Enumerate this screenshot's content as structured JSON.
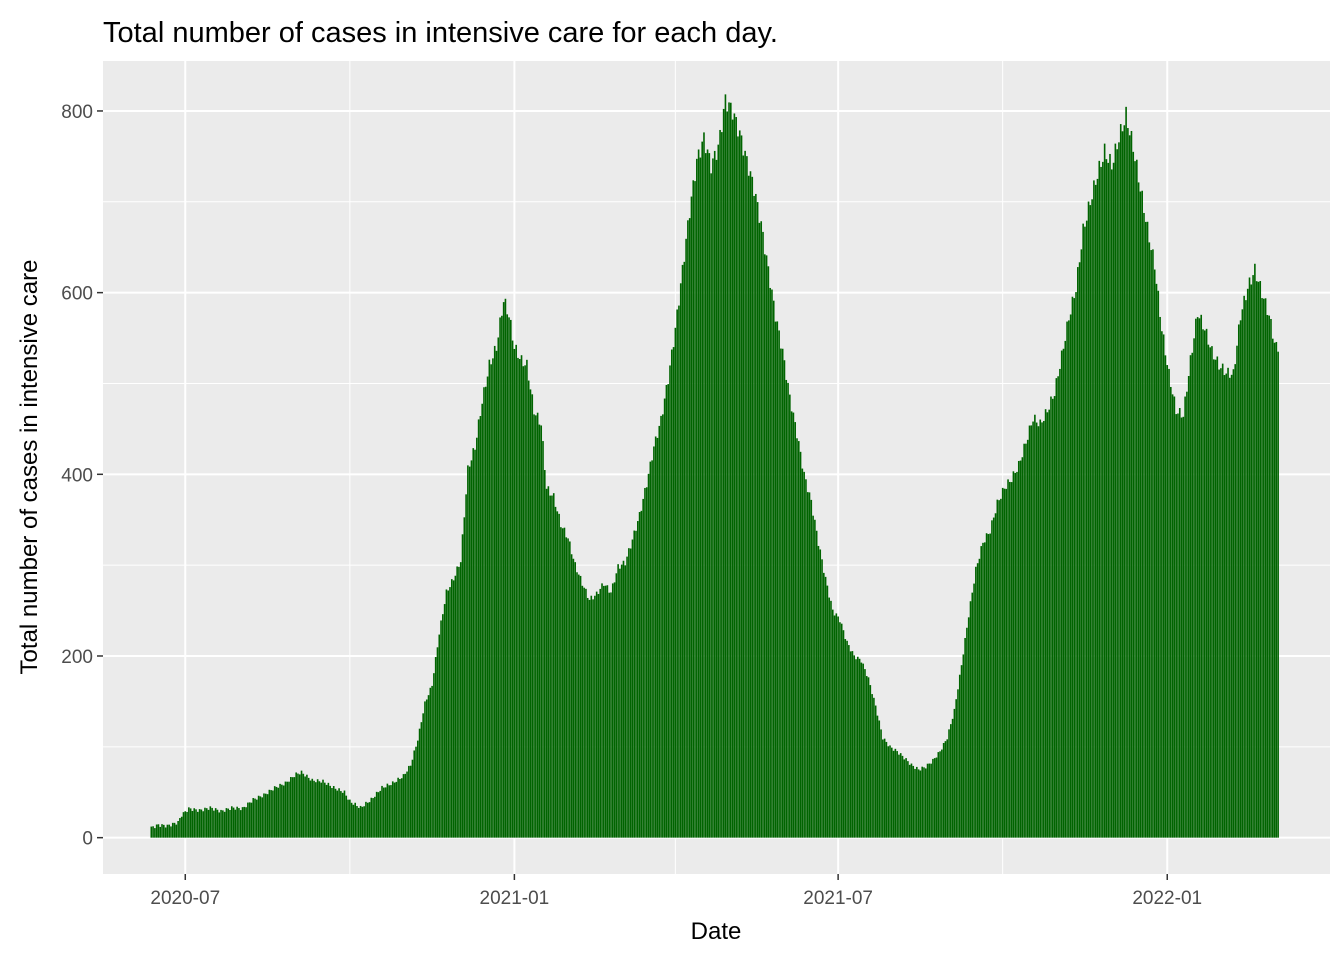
{
  "chart_data": {
    "type": "bar",
    "title": "Total number of cases in intensive care for each day.",
    "xlabel": "Date",
    "ylabel": "Total number of cases in intensive care",
    "x_axis": {
      "kind": "date",
      "range": [
        "2020-05-16",
        "2022-04-02"
      ],
      "ticks": [
        {
          "value": "2020-07-01",
          "label": "2020-07"
        },
        {
          "value": "2021-01-01",
          "label": "2021-01"
        },
        {
          "value": "2021-07-01",
          "label": "2021-07"
        },
        {
          "value": "2022-01-01",
          "label": "2022-01"
        }
      ],
      "minor_ticks": [
        "2020-10-01",
        "2021-04-01",
        "2021-10-01"
      ]
    },
    "y_axis": {
      "range": [
        -40,
        855
      ],
      "ticks": [
        0,
        200,
        400,
        600,
        800
      ],
      "minor_ticks": [
        100,
        300,
        500,
        700
      ]
    },
    "grid": true,
    "bar_color": "#006400",
    "panel_background": "#EBEBEB",
    "grid_color": "#FFFFFF",
    "series": [
      {
        "points": [
          [
            "2020-06-12",
            11
          ],
          [
            "2020-06-16",
            14
          ],
          [
            "2020-06-21",
            13
          ],
          [
            "2020-06-27",
            17
          ],
          [
            "2020-06-29",
            25
          ],
          [
            "2020-07-03",
            32
          ],
          [
            "2020-07-09",
            30
          ],
          [
            "2020-07-15",
            33
          ],
          [
            "2020-07-21",
            29
          ],
          [
            "2020-07-27",
            33
          ],
          [
            "2020-08-02",
            32
          ],
          [
            "2020-08-08",
            42
          ],
          [
            "2020-08-14",
            47
          ],
          [
            "2020-08-20",
            55
          ],
          [
            "2020-08-26",
            60
          ],
          [
            "2020-09-01",
            70
          ],
          [
            "2020-09-04",
            72
          ],
          [
            "2020-09-10",
            63
          ],
          [
            "2020-09-16",
            62
          ],
          [
            "2020-09-22",
            55
          ],
          [
            "2020-09-28",
            50
          ],
          [
            "2020-10-01",
            40
          ],
          [
            "2020-10-07",
            33
          ],
          [
            "2020-10-13",
            42
          ],
          [
            "2020-10-19",
            55
          ],
          [
            "2020-10-25",
            60
          ],
          [
            "2020-10-31",
            68
          ],
          [
            "2020-11-04",
            80
          ],
          [
            "2020-11-08",
            108
          ],
          [
            "2020-11-12",
            148
          ],
          [
            "2020-11-16",
            168
          ],
          [
            "2020-11-20",
            225
          ],
          [
            "2020-11-24",
            270
          ],
          [
            "2020-11-28",
            285
          ],
          [
            "2020-12-02",
            305
          ],
          [
            "2020-12-06",
            405
          ],
          [
            "2020-12-10",
            430
          ],
          [
            "2020-12-14",
            480
          ],
          [
            "2020-12-18",
            520
          ],
          [
            "2020-12-22",
            540
          ],
          [
            "2020-12-26",
            592
          ],
          [
            "2020-12-29",
            575
          ],
          [
            "2021-01-01",
            540
          ],
          [
            "2021-01-05",
            525
          ],
          [
            "2021-01-08",
            520
          ],
          [
            "2021-01-12",
            470
          ],
          [
            "2021-01-16",
            455
          ],
          [
            "2021-01-19",
            385
          ],
          [
            "2021-01-23",
            375
          ],
          [
            "2021-01-27",
            345
          ],
          [
            "2021-01-31",
            330
          ],
          [
            "2021-02-04",
            300
          ],
          [
            "2021-02-08",
            280
          ],
          [
            "2021-02-12",
            262
          ],
          [
            "2021-02-16",
            268
          ],
          [
            "2021-02-20",
            280
          ],
          [
            "2021-02-24",
            270
          ],
          [
            "2021-02-28",
            298
          ],
          [
            "2021-03-04",
            303
          ],
          [
            "2021-03-08",
            328
          ],
          [
            "2021-03-12",
            355
          ],
          [
            "2021-03-16",
            390
          ],
          [
            "2021-03-20",
            430
          ],
          [
            "2021-03-24",
            460
          ],
          [
            "2021-03-28",
            505
          ],
          [
            "2021-04-01",
            560
          ],
          [
            "2021-04-05",
            625
          ],
          [
            "2021-04-09",
            690
          ],
          [
            "2021-04-13",
            745
          ],
          [
            "2021-04-17",
            770
          ],
          [
            "2021-04-21",
            740
          ],
          [
            "2021-04-25",
            760
          ],
          [
            "2021-04-29",
            812
          ],
          [
            "2021-05-03",
            800
          ],
          [
            "2021-05-07",
            775
          ],
          [
            "2021-05-11",
            745
          ],
          [
            "2021-05-15",
            715
          ],
          [
            "2021-05-19",
            675
          ],
          [
            "2021-05-23",
            625
          ],
          [
            "2021-05-27",
            575
          ],
          [
            "2021-05-31",
            535
          ],
          [
            "2021-06-04",
            485
          ],
          [
            "2021-06-08",
            445
          ],
          [
            "2021-06-12",
            400
          ],
          [
            "2021-06-16",
            370
          ],
          [
            "2021-06-20",
            325
          ],
          [
            "2021-06-24",
            285
          ],
          [
            "2021-06-28",
            250
          ],
          [
            "2021-07-02",
            240
          ],
          [
            "2021-07-06",
            215
          ],
          [
            "2021-07-10",
            200
          ],
          [
            "2021-07-14",
            195
          ],
          [
            "2021-07-18",
            175
          ],
          [
            "2021-07-22",
            145
          ],
          [
            "2021-07-26",
            110
          ],
          [
            "2021-07-30",
            100
          ],
          [
            "2021-08-03",
            95
          ],
          [
            "2021-08-07",
            88
          ],
          [
            "2021-08-11",
            80
          ],
          [
            "2021-08-15",
            75
          ],
          [
            "2021-08-19",
            78
          ],
          [
            "2021-08-23",
            85
          ],
          [
            "2021-08-27",
            95
          ],
          [
            "2021-08-31",
            110
          ],
          [
            "2021-09-04",
            140
          ],
          [
            "2021-09-08",
            190
          ],
          [
            "2021-09-12",
            245
          ],
          [
            "2021-09-16",
            295
          ],
          [
            "2021-09-20",
            325
          ],
          [
            "2021-09-24",
            338
          ],
          [
            "2021-09-28",
            368
          ],
          [
            "2021-10-02",
            385
          ],
          [
            "2021-10-06",
            395
          ],
          [
            "2021-10-10",
            410
          ],
          [
            "2021-10-14",
            435
          ],
          [
            "2021-10-18",
            462
          ],
          [
            "2021-10-22",
            455
          ],
          [
            "2021-10-26",
            470
          ],
          [
            "2021-10-30",
            490
          ],
          [
            "2021-11-03",
            530
          ],
          [
            "2021-11-07",
            572
          ],
          [
            "2021-11-11",
            605
          ],
          [
            "2021-11-15",
            668
          ],
          [
            "2021-11-19",
            700
          ],
          [
            "2021-11-23",
            730
          ],
          [
            "2021-11-27",
            755
          ],
          [
            "2021-12-01",
            740
          ],
          [
            "2021-12-05",
            770
          ],
          [
            "2021-12-09",
            795
          ],
          [
            "2021-12-13",
            760
          ],
          [
            "2021-12-17",
            715
          ],
          [
            "2021-12-21",
            670
          ],
          [
            "2021-12-25",
            630
          ],
          [
            "2021-12-29",
            560
          ],
          [
            "2022-01-02",
            510
          ],
          [
            "2022-01-06",
            470
          ],
          [
            "2022-01-10",
            465
          ],
          [
            "2022-01-14",
            525
          ],
          [
            "2022-01-18",
            578
          ],
          [
            "2022-01-22",
            560
          ],
          [
            "2022-01-26",
            535
          ],
          [
            "2022-01-30",
            520
          ],
          [
            "2022-02-03",
            512
          ],
          [
            "2022-02-07",
            510
          ],
          [
            "2022-02-11",
            575
          ],
          [
            "2022-02-15",
            605
          ],
          [
            "2022-02-19",
            625
          ],
          [
            "2022-02-23",
            600
          ],
          [
            "2022-02-27",
            575
          ],
          [
            "2022-03-02",
            545
          ],
          [
            "2022-03-04",
            535
          ]
        ]
      }
    ]
  }
}
